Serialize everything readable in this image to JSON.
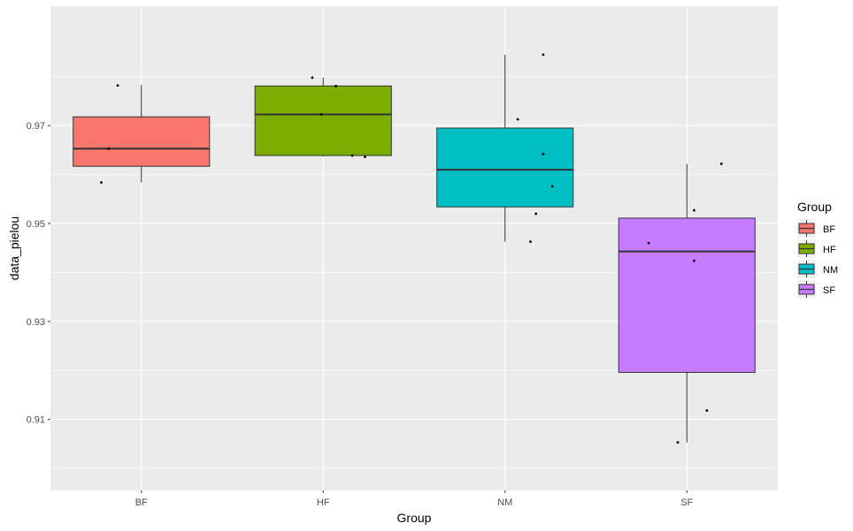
{
  "chart_data": {
    "type": "box",
    "xlabel": "Group",
    "ylabel": "data_pielou",
    "ylim": [
      0.8955,
      0.9944
    ],
    "y_ticks": [
      0.91,
      0.93,
      0.95,
      0.97
    ],
    "y_tick_labels": [
      "0.91",
      "0.93",
      "0.95",
      "0.97"
    ],
    "grid": true,
    "categories": [
      "BF",
      "HF",
      "NM",
      "SF"
    ],
    "legend": {
      "title": "Group",
      "position": "right",
      "entries": [
        "BF",
        "HF",
        "NM",
        "SF"
      ]
    },
    "colors": {
      "BF": "#f8766d",
      "HF": "#7cae00",
      "NM": "#00bfc4",
      "SF": "#c77cff",
      "panel_bg": "#ebebeb",
      "grid": "#ffffff"
    },
    "boxes": [
      {
        "group": "BF",
        "min": 0.9584,
        "q1": 0.9617,
        "median": 0.9653,
        "q3": 0.9718,
        "max": 0.9783
      },
      {
        "group": "HF",
        "min": 0.9637,
        "q1": 0.9639,
        "median": 0.9723,
        "q3": 0.9781,
        "max": 0.9798
      },
      {
        "group": "NM",
        "min": 0.9463,
        "q1": 0.9534,
        "median": 0.961,
        "q3": 0.9695,
        "max": 0.9845
      },
      {
        "group": "SF",
        "min": 0.9053,
        "q1": 0.9196,
        "median": 0.9443,
        "q3": 0.9511,
        "max": 0.9622
      }
    ],
    "points": [
      {
        "group": "BF",
        "x_offset": -0.22,
        "y": 0.9584
      },
      {
        "group": "BF",
        "x_offset": -0.18,
        "y": 0.9653
      },
      {
        "group": "BF",
        "x_offset": -0.13,
        "y": 0.9782
      },
      {
        "group": "HF",
        "x_offset": -0.06,
        "y": 0.9798
      },
      {
        "group": "HF",
        "x_offset": -0.01,
        "y": 0.9723
      },
      {
        "group": "HF",
        "x_offset": 0.07,
        "y": 0.9781
      },
      {
        "group": "HF",
        "x_offset": 0.16,
        "y": 0.9639
      },
      {
        "group": "HF",
        "x_offset": 0.23,
        "y": 0.9636
      },
      {
        "group": "NM",
        "x_offset": 0.07,
        "y": 0.9713
      },
      {
        "group": "NM",
        "x_offset": 0.14,
        "y": 0.9463
      },
      {
        "group": "NM",
        "x_offset": 0.17,
        "y": 0.952
      },
      {
        "group": "NM",
        "x_offset": 0.21,
        "y": 0.9845
      },
      {
        "group": "NM",
        "x_offset": 0.21,
        "y": 0.9642
      },
      {
        "group": "NM",
        "x_offset": 0.26,
        "y": 0.9576
      },
      {
        "group": "SF",
        "x_offset": -0.21,
        "y": 0.946
      },
      {
        "group": "SF",
        "x_offset": -0.05,
        "y": 0.9053
      },
      {
        "group": "SF",
        "x_offset": 0.04,
        "y": 0.9527
      },
      {
        "group": "SF",
        "x_offset": 0.04,
        "y": 0.9424
      },
      {
        "group": "SF",
        "x_offset": 0.11,
        "y": 0.9118
      },
      {
        "group": "SF",
        "x_offset": 0.19,
        "y": 0.9622
      }
    ]
  }
}
